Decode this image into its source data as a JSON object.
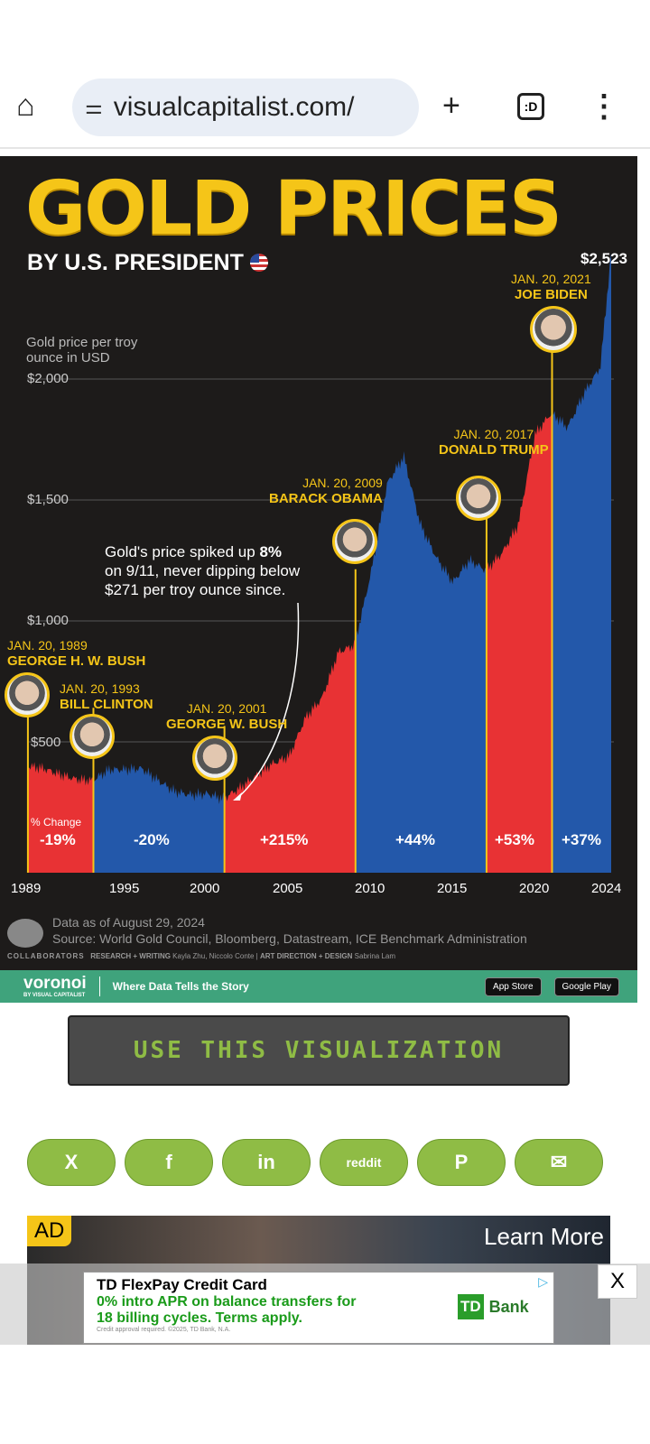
{
  "browser": {
    "url": "visualcapitalist.com/",
    "home_icon": "home-icon",
    "tune_icon": "site-settings-icon",
    "new_tab": "+",
    "tabs_count": ":D",
    "menu_icon": "more-vert-icon"
  },
  "infographic": {
    "title": "GOLD PRICES",
    "subtitle": "BY U.S. PRESIDENT",
    "y_axis_title_1": "Gold price per troy",
    "y_axis_title_2": "ounce in USD",
    "latest_price": "$2,523",
    "annotation_1": "Gold's price spiked up ",
    "annotation_bold": "8%",
    "annotation_2": "on 9/11, never dipping below",
    "annotation_3": "$271 per troy ounce since.",
    "pct_change_label": "% Change",
    "presidents": [
      {
        "date": "JAN. 20, 1989",
        "name": "GEORGE H. W. BUSH",
        "change": "-19%"
      },
      {
        "date": "JAN. 20, 1993",
        "name": "BILL CLINTON",
        "change": "-20%"
      },
      {
        "date": "JAN. 20, 2001",
        "name": "GEORGE W. BUSH",
        "change": "+215%"
      },
      {
        "date": "JAN. 20, 2009",
        "name": "BARACK OBAMA",
        "change": "+44%"
      },
      {
        "date": "JAN. 20, 2017",
        "name": "DONALD TRUMP",
        "change": "+53%"
      },
      {
        "date": "JAN. 20, 2021",
        "name": "JOE BIDEN",
        "change": "+37%"
      }
    ],
    "data_as_of": "Data as of August 29, 2024",
    "source": "Source: World Gold Council, Bloomberg, Datastream, ICE Benchmark Administration",
    "collaborators": "COLLABORATORS",
    "research_label": "RESEARCH + WRITING",
    "research_names": "Kayla Zhu, Niccolo Conte",
    "art_label": "ART DIRECTION + DESIGN",
    "art_names": "Sabrina Lam",
    "brand": "voronoi",
    "brand_sub": "BY VISUAL CAPITALIST",
    "tagline": "Where Data Tells the Story",
    "app_store": "App Store",
    "google_play": "Google Play"
  },
  "chart_data": {
    "type": "area",
    "title": "GOLD PRICES BY U.S. PRESIDENT",
    "ylabel": "Gold price per troy ounce in USD",
    "y_ticks": [
      "$500",
      "$1,000",
      "$1,500",
      "$2,000"
    ],
    "x_ticks": [
      "1989",
      "1995",
      "2000",
      "2005",
      "2010",
      "2015",
      "2020",
      "2024"
    ],
    "x": [
      1989,
      1990,
      1991,
      1992,
      1993,
      1994,
      1995,
      1996,
      1997,
      1998,
      1999,
      2000,
      2001,
      2002,
      2003,
      2004,
      2005,
      2006,
      2007,
      2008,
      2009,
      2010,
      2011,
      2012,
      2013,
      2014,
      2015,
      2016,
      2017,
      2018,
      2019,
      2020,
      2021,
      2022,
      2023,
      2024,
      2024.66
    ],
    "values": [
      400,
      390,
      365,
      345,
      340,
      385,
      385,
      390,
      340,
      295,
      280,
      285,
      265,
      310,
      360,
      410,
      440,
      600,
      680,
      870,
      900,
      1200,
      1570,
      1680,
      1400,
      1260,
      1160,
      1250,
      1210,
      1280,
      1400,
      1770,
      1860,
      1800,
      1940,
      2050,
      2523
    ],
    "terms": [
      [
        1989.05,
        1993.05,
        "#e83234"
      ],
      [
        1993.05,
        2001.05,
        "#2358aa"
      ],
      [
        2001.05,
        2009.05,
        "#e83234"
      ],
      [
        2009.05,
        2017.05,
        "#2358aa"
      ],
      [
        2017.05,
        2021.05,
        "#e83234"
      ],
      [
        2021.05,
        2024.66,
        "#2358aa"
      ]
    ]
  },
  "page": {
    "use_button": "USE THIS VISUALIZATION",
    "share": [
      "X",
      "f",
      "in",
      "reddit",
      "P",
      "✉"
    ]
  },
  "ad": {
    "tag": "AD",
    "learn_more": "Learn More",
    "headline": "TD FlexPay Credit Card",
    "body_1": "0% intro APR on balance transfers for",
    "body_2": "18 billing cycles. Terms apply.",
    "fine_print": "Credit approval required. ©2025, TD Bank, N.A.",
    "brand": "Bank",
    "close": "X"
  }
}
